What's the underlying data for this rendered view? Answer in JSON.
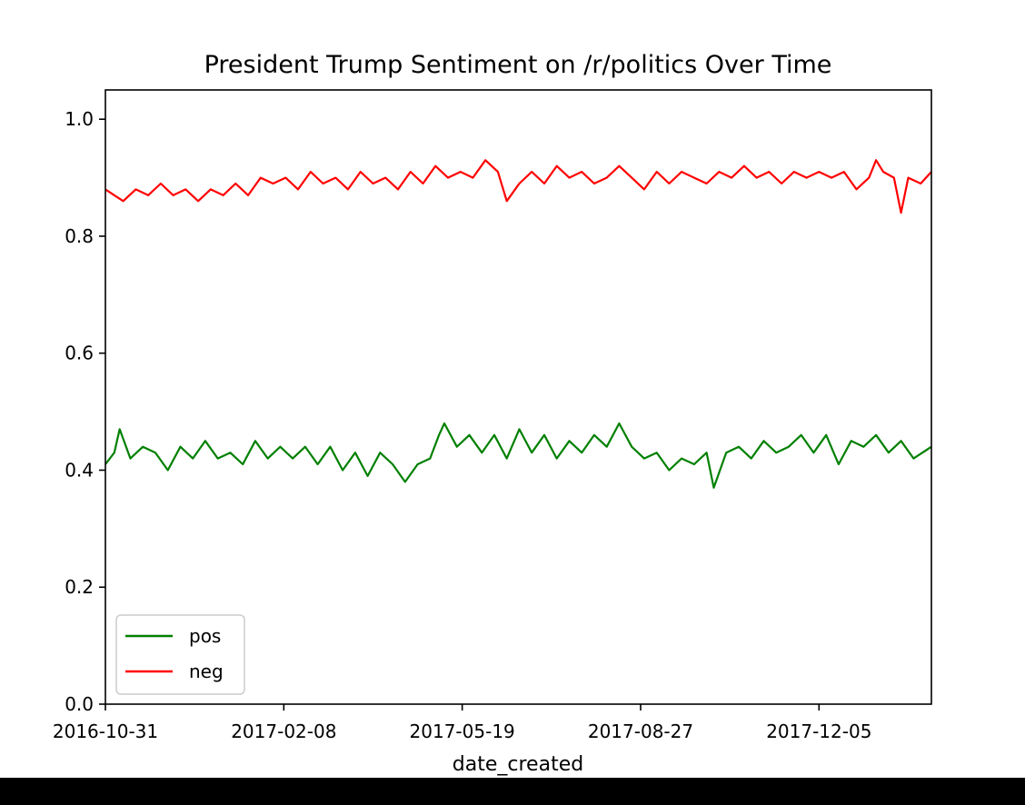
{
  "chart_data": {
    "type": "line",
    "title": "President Trump Sentiment on /r/politics Over Time",
    "xlabel": "date_created",
    "ylabel": "",
    "x_type": "date",
    "xlim": [
      "2016-10-31",
      "2018-02-06"
    ],
    "ylim": [
      0.0,
      1.05
    ],
    "x_ticks": [
      "2016-10-31",
      "2017-02-08",
      "2017-05-19",
      "2017-08-27",
      "2017-12-05"
    ],
    "y_ticks": [
      "0.0",
      "0.2",
      "0.4",
      "0.6",
      "0.8",
      "1.0"
    ],
    "grid": false,
    "legend": {
      "position": "lower-left",
      "entries": [
        "pos",
        "neg"
      ]
    },
    "series": [
      {
        "name": "pos",
        "color": "#008000",
        "points": [
          [
            "2016-10-31",
            0.41
          ],
          [
            "2016-11-05",
            0.43
          ],
          [
            "2016-11-08",
            0.47
          ],
          [
            "2016-11-14",
            0.42
          ],
          [
            "2016-11-21",
            0.44
          ],
          [
            "2016-11-28",
            0.43
          ],
          [
            "2016-12-05",
            0.4
          ],
          [
            "2016-12-12",
            0.44
          ],
          [
            "2016-12-19",
            0.42
          ],
          [
            "2016-12-26",
            0.45
          ],
          [
            "2017-01-02",
            0.42
          ],
          [
            "2017-01-09",
            0.43
          ],
          [
            "2017-01-16",
            0.41
          ],
          [
            "2017-01-23",
            0.45
          ],
          [
            "2017-01-30",
            0.42
          ],
          [
            "2017-02-06",
            0.44
          ],
          [
            "2017-02-13",
            0.42
          ],
          [
            "2017-02-20",
            0.44
          ],
          [
            "2017-02-27",
            0.41
          ],
          [
            "2017-03-06",
            0.44
          ],
          [
            "2017-03-13",
            0.4
          ],
          [
            "2017-03-20",
            0.43
          ],
          [
            "2017-03-27",
            0.39
          ],
          [
            "2017-04-03",
            0.43
          ],
          [
            "2017-04-10",
            0.41
          ],
          [
            "2017-04-17",
            0.38
          ],
          [
            "2017-04-24",
            0.41
          ],
          [
            "2017-05-01",
            0.42
          ],
          [
            "2017-05-06",
            0.46
          ],
          [
            "2017-05-09",
            0.48
          ],
          [
            "2017-05-16",
            0.44
          ],
          [
            "2017-05-23",
            0.46
          ],
          [
            "2017-05-30",
            0.43
          ],
          [
            "2017-06-06",
            0.46
          ],
          [
            "2017-06-13",
            0.42
          ],
          [
            "2017-06-20",
            0.47
          ],
          [
            "2017-06-27",
            0.43
          ],
          [
            "2017-07-04",
            0.46
          ],
          [
            "2017-07-11",
            0.42
          ],
          [
            "2017-07-18",
            0.45
          ],
          [
            "2017-07-25",
            0.43
          ],
          [
            "2017-08-01",
            0.46
          ],
          [
            "2017-08-08",
            0.44
          ],
          [
            "2017-08-15",
            0.48
          ],
          [
            "2017-08-22",
            0.44
          ],
          [
            "2017-08-29",
            0.42
          ],
          [
            "2017-09-05",
            0.43
          ],
          [
            "2017-09-12",
            0.4
          ],
          [
            "2017-09-19",
            0.42
          ],
          [
            "2017-09-26",
            0.41
          ],
          [
            "2017-10-03",
            0.43
          ],
          [
            "2017-10-07",
            0.37
          ],
          [
            "2017-10-14",
            0.43
          ],
          [
            "2017-10-21",
            0.44
          ],
          [
            "2017-10-28",
            0.42
          ],
          [
            "2017-11-04",
            0.45
          ],
          [
            "2017-11-11",
            0.43
          ],
          [
            "2017-11-18",
            0.44
          ],
          [
            "2017-11-25",
            0.46
          ],
          [
            "2017-12-02",
            0.43
          ],
          [
            "2017-12-09",
            0.46
          ],
          [
            "2017-12-16",
            0.41
          ],
          [
            "2017-12-23",
            0.45
          ],
          [
            "2017-12-30",
            0.44
          ],
          [
            "2018-01-06",
            0.46
          ],
          [
            "2018-01-13",
            0.43
          ],
          [
            "2018-01-20",
            0.45
          ],
          [
            "2018-01-27",
            0.42
          ],
          [
            "2018-02-06",
            0.44
          ]
        ]
      },
      {
        "name": "neg",
        "color": "#ff0000",
        "points": [
          [
            "2016-10-31",
            0.88
          ],
          [
            "2016-11-05",
            0.87
          ],
          [
            "2016-11-10",
            0.86
          ],
          [
            "2016-11-17",
            0.88
          ],
          [
            "2016-11-24",
            0.87
          ],
          [
            "2016-12-01",
            0.89
          ],
          [
            "2016-12-08",
            0.87
          ],
          [
            "2016-12-15",
            0.88
          ],
          [
            "2016-12-22",
            0.86
          ],
          [
            "2016-12-29",
            0.88
          ],
          [
            "2017-01-05",
            0.87
          ],
          [
            "2017-01-12",
            0.89
          ],
          [
            "2017-01-19",
            0.87
          ],
          [
            "2017-01-26",
            0.9
          ],
          [
            "2017-02-02",
            0.89
          ],
          [
            "2017-02-09",
            0.9
          ],
          [
            "2017-02-16",
            0.88
          ],
          [
            "2017-02-23",
            0.91
          ],
          [
            "2017-03-02",
            0.89
          ],
          [
            "2017-03-09",
            0.9
          ],
          [
            "2017-03-16",
            0.88
          ],
          [
            "2017-03-23",
            0.91
          ],
          [
            "2017-03-30",
            0.89
          ],
          [
            "2017-04-06",
            0.9
          ],
          [
            "2017-04-13",
            0.88
          ],
          [
            "2017-04-20",
            0.91
          ],
          [
            "2017-04-27",
            0.89
          ],
          [
            "2017-05-04",
            0.92
          ],
          [
            "2017-05-11",
            0.9
          ],
          [
            "2017-05-18",
            0.91
          ],
          [
            "2017-05-25",
            0.9
          ],
          [
            "2017-06-01",
            0.93
          ],
          [
            "2017-06-08",
            0.91
          ],
          [
            "2017-06-13",
            0.86
          ],
          [
            "2017-06-20",
            0.89
          ],
          [
            "2017-06-27",
            0.91
          ],
          [
            "2017-07-04",
            0.89
          ],
          [
            "2017-07-11",
            0.92
          ],
          [
            "2017-07-18",
            0.9
          ],
          [
            "2017-07-25",
            0.91
          ],
          [
            "2017-08-01",
            0.89
          ],
          [
            "2017-08-08",
            0.9
          ],
          [
            "2017-08-15",
            0.92
          ],
          [
            "2017-08-22",
            0.9
          ],
          [
            "2017-08-29",
            0.88
          ],
          [
            "2017-09-05",
            0.91
          ],
          [
            "2017-09-12",
            0.89
          ],
          [
            "2017-09-19",
            0.91
          ],
          [
            "2017-09-26",
            0.9
          ],
          [
            "2017-10-03",
            0.89
          ],
          [
            "2017-10-10",
            0.91
          ],
          [
            "2017-10-17",
            0.9
          ],
          [
            "2017-10-24",
            0.92
          ],
          [
            "2017-10-31",
            0.9
          ],
          [
            "2017-11-07",
            0.91
          ],
          [
            "2017-11-14",
            0.89
          ],
          [
            "2017-11-21",
            0.91
          ],
          [
            "2017-11-28",
            0.9
          ],
          [
            "2017-12-05",
            0.91
          ],
          [
            "2017-12-12",
            0.9
          ],
          [
            "2017-12-19",
            0.91
          ],
          [
            "2017-12-26",
            0.88
          ],
          [
            "2018-01-02",
            0.9
          ],
          [
            "2018-01-06",
            0.93
          ],
          [
            "2018-01-10",
            0.91
          ],
          [
            "2018-01-16",
            0.9
          ],
          [
            "2018-01-20",
            0.84
          ],
          [
            "2018-01-24",
            0.9
          ],
          [
            "2018-01-31",
            0.89
          ],
          [
            "2018-02-06",
            0.91
          ]
        ]
      }
    ]
  }
}
